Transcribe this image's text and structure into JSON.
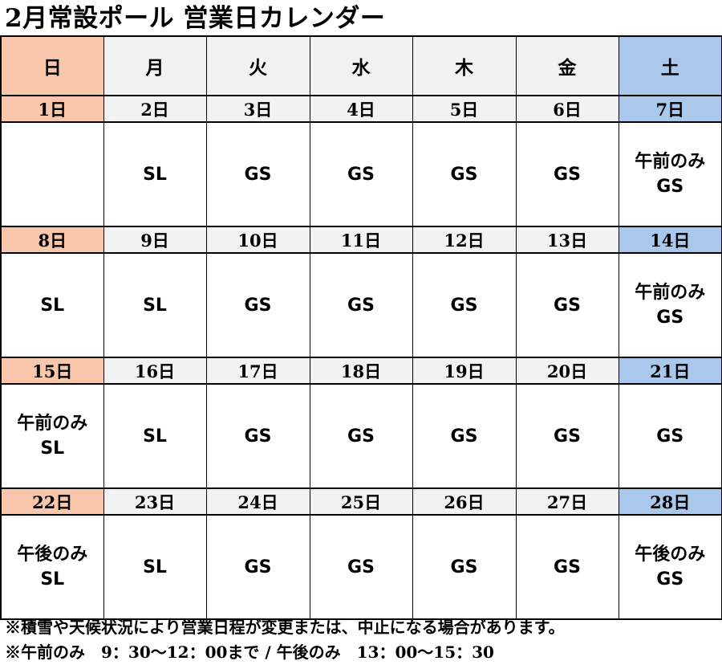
{
  "title": "2月常設ポール 営業日カレンダー",
  "colors": {
    "sunday_bg": "#f7c6ab",
    "saturday_bg": "#a9c8ec",
    "weekday_header_bg": "#f2f2f2"
  },
  "weekdays": [
    "日",
    "月",
    "火",
    "水",
    "木",
    "金",
    "土"
  ],
  "weeks": [
    {
      "dates": [
        "1日",
        "2日",
        "3日",
        "4日",
        "5日",
        "6日",
        "7日"
      ],
      "content": [
        [],
        [
          "SL"
        ],
        [
          "GS"
        ],
        [
          "GS"
        ],
        [
          "GS"
        ],
        [
          "GS"
        ],
        [
          "午前のみ",
          "GS"
        ]
      ]
    },
    {
      "dates": [
        "8日",
        "9日",
        "10日",
        "11日",
        "12日",
        "13日",
        "14日"
      ],
      "content": [
        [
          "SL"
        ],
        [
          "SL"
        ],
        [
          "GS"
        ],
        [
          "GS"
        ],
        [
          "GS"
        ],
        [
          "GS"
        ],
        [
          "午前のみ",
          "GS"
        ]
      ]
    },
    {
      "dates": [
        "15日",
        "16日",
        "17日",
        "18日",
        "19日",
        "20日",
        "21日"
      ],
      "content": [
        [
          "午前のみ",
          "SL"
        ],
        [
          "SL"
        ],
        [
          "GS"
        ],
        [
          "GS"
        ],
        [
          "GS"
        ],
        [
          "GS"
        ],
        [
          "GS"
        ]
      ]
    },
    {
      "dates": [
        "22日",
        "23日",
        "24日",
        "25日",
        "26日",
        "27日",
        "28日"
      ],
      "content": [
        [
          "午後のみ",
          "SL"
        ],
        [
          "SL"
        ],
        [
          "GS"
        ],
        [
          "GS"
        ],
        [
          "GS"
        ],
        [
          "GS"
        ],
        [
          "午後のみ",
          "GS"
        ]
      ]
    }
  ],
  "notes": [
    "※積雪や天候状況により営業日程が変更または、中止になる場合があります。",
    "※午前のみ　9：30～12：00まで / 午後のみ　13：00～15：30"
  ]
}
